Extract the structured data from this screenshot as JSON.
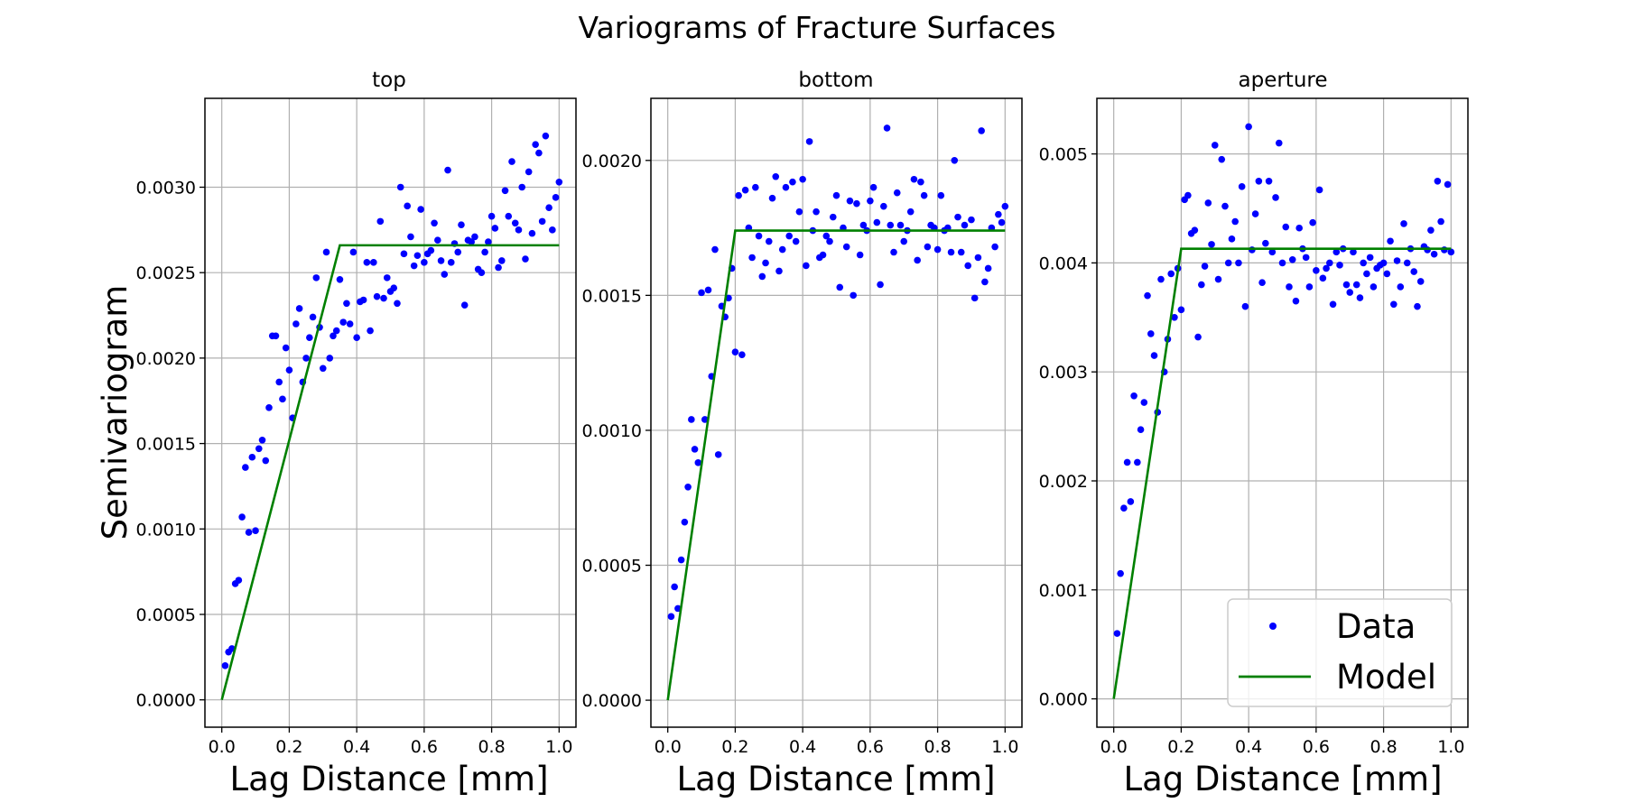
{
  "figure_title": "Variograms of Fracture Surfaces",
  "colors": {
    "data": "#0000ff",
    "model": "#008000",
    "grid": "#b0b0b0",
    "legend_border": "#cccccc"
  },
  "legend": {
    "placement": "lower-right",
    "panel": 2,
    "entries": [
      "Data",
      "Model"
    ]
  },
  "chart_data": [
    {
      "type": "scatter",
      "title": "top",
      "xlabel": "Lag Distance [mm]",
      "ylabel": "Semivariogram",
      "xlim": [
        -0.05,
        1.05
      ],
      "ylim": [
        -0.00016,
        0.00352
      ],
      "xticks": [
        0.0,
        0.2,
        0.4,
        0.6,
        0.8,
        1.0
      ],
      "xtick_labels": [
        "0.0",
        "0.2",
        "0.4",
        "0.6",
        "0.8",
        "1.0"
      ],
      "yticks": [
        0.0,
        0.0005,
        0.001,
        0.0015,
        0.002,
        0.0025,
        0.003
      ],
      "ytick_labels": [
        "0.0000",
        "0.0005",
        "0.0010",
        "0.0015",
        "0.0020",
        "0.0025",
        "0.0030"
      ],
      "grid": true,
      "series": [
        {
          "name": "Data",
          "style": "markers",
          "x": [
            0.01,
            0.02,
            0.03,
            0.04,
            0.05,
            0.06,
            0.07,
            0.08,
            0.09,
            0.1,
            0.11,
            0.12,
            0.13,
            0.14,
            0.15,
            0.16,
            0.17,
            0.18,
            0.19,
            0.2,
            0.21,
            0.22,
            0.23,
            0.24,
            0.25,
            0.26,
            0.27,
            0.28,
            0.29,
            0.3,
            0.31,
            0.32,
            0.33,
            0.34,
            0.35,
            0.36,
            0.37,
            0.38,
            0.39,
            0.4,
            0.41,
            0.42,
            0.43,
            0.44,
            0.45,
            0.46,
            0.47,
            0.48,
            0.49,
            0.5,
            0.51,
            0.52,
            0.53,
            0.54,
            0.55,
            0.56,
            0.57,
            0.58,
            0.59,
            0.6,
            0.61,
            0.62,
            0.63,
            0.64,
            0.65,
            0.66,
            0.67,
            0.68,
            0.69,
            0.7,
            0.71,
            0.72,
            0.73,
            0.74,
            0.75,
            0.76,
            0.77,
            0.78,
            0.79,
            0.8,
            0.81,
            0.82,
            0.83,
            0.84,
            0.85,
            0.86,
            0.87,
            0.88,
            0.89,
            0.9,
            0.91,
            0.92,
            0.93,
            0.94,
            0.95,
            0.96,
            0.97,
            0.98,
            0.99,
            1.0
          ],
          "y": [
            0.0002,
            0.00028,
            0.0003,
            0.00068,
            0.0007,
            0.00107,
            0.00136,
            0.00098,
            0.00142,
            0.00099,
            0.00147,
            0.00152,
            0.0014,
            0.00171,
            0.00213,
            0.00213,
            0.00186,
            0.00176,
            0.00206,
            0.00193,
            0.00165,
            0.0022,
            0.00229,
            0.00186,
            0.002,
            0.00212,
            0.00224,
            0.00247,
            0.00218,
            0.00194,
            0.00262,
            0.002,
            0.00213,
            0.00216,
            0.00246,
            0.00221,
            0.00232,
            0.0022,
            0.00262,
            0.00212,
            0.00233,
            0.00234,
            0.00256,
            0.00216,
            0.00256,
            0.00236,
            0.0028,
            0.00235,
            0.00247,
            0.00239,
            0.00241,
            0.00232,
            0.003,
            0.00261,
            0.00289,
            0.00271,
            0.00254,
            0.0026,
            0.00287,
            0.00256,
            0.00261,
            0.00263,
            0.00279,
            0.00269,
            0.00257,
            0.00249,
            0.0031,
            0.00256,
            0.00267,
            0.00262,
            0.00278,
            0.00231,
            0.00269,
            0.00268,
            0.00271,
            0.00252,
            0.0025,
            0.00262,
            0.00268,
            0.00283,
            0.00276,
            0.00253,
            0.00257,
            0.00298,
            0.00283,
            0.00315,
            0.00279,
            0.00275,
            0.003,
            0.00258,
            0.00309,
            0.00273,
            0.00325,
            0.0032,
            0.0028,
            0.0033,
            0.00288,
            0.00275,
            0.00294,
            0.00303
          ]
        },
        {
          "name": "Model",
          "style": "line",
          "x": [
            0.0,
            0.35,
            1.0
          ],
          "y": [
            0.0,
            0.00266,
            0.00266
          ]
        }
      ]
    },
    {
      "type": "scatter",
      "title": "bottom",
      "xlabel": "Lag Distance [mm]",
      "ylabel": "",
      "xlim": [
        -0.05,
        1.05
      ],
      "ylim": [
        -0.0001,
        0.00223
      ],
      "xticks": [
        0.0,
        0.2,
        0.4,
        0.6,
        0.8,
        1.0
      ],
      "xtick_labels": [
        "0.0",
        "0.2",
        "0.4",
        "0.6",
        "0.8",
        "1.0"
      ],
      "yticks": [
        0.0,
        0.0005,
        0.001,
        0.0015,
        0.002
      ],
      "ytick_labels": [
        "0.0000",
        "0.0005",
        "0.0010",
        "0.0015",
        "0.0020"
      ],
      "grid": true,
      "series": [
        {
          "name": "Data",
          "style": "markers",
          "x": [
            0.01,
            0.02,
            0.03,
            0.04,
            0.05,
            0.06,
            0.07,
            0.08,
            0.09,
            0.1,
            0.11,
            0.12,
            0.13,
            0.14,
            0.15,
            0.16,
            0.17,
            0.18,
            0.19,
            0.2,
            0.21,
            0.22,
            0.23,
            0.24,
            0.25,
            0.26,
            0.27,
            0.28,
            0.29,
            0.3,
            0.31,
            0.32,
            0.33,
            0.34,
            0.35,
            0.36,
            0.37,
            0.38,
            0.39,
            0.4,
            0.41,
            0.42,
            0.43,
            0.44,
            0.45,
            0.46,
            0.47,
            0.48,
            0.49,
            0.5,
            0.51,
            0.52,
            0.53,
            0.54,
            0.55,
            0.56,
            0.57,
            0.58,
            0.59,
            0.6,
            0.61,
            0.62,
            0.63,
            0.64,
            0.65,
            0.66,
            0.67,
            0.68,
            0.69,
            0.7,
            0.71,
            0.72,
            0.73,
            0.74,
            0.75,
            0.76,
            0.77,
            0.78,
            0.79,
            0.8,
            0.81,
            0.82,
            0.83,
            0.84,
            0.85,
            0.86,
            0.87,
            0.88,
            0.89,
            0.9,
            0.91,
            0.92,
            0.93,
            0.94,
            0.95,
            0.96,
            0.97,
            0.98,
            0.99,
            1.0
          ],
          "y": [
            0.00031,
            0.00042,
            0.00034,
            0.00052,
            0.00066,
            0.00079,
            0.00104,
            0.00093,
            0.00088,
            0.00151,
            0.00104,
            0.00152,
            0.0012,
            0.00167,
            0.00091,
            0.00146,
            0.00142,
            0.00149,
            0.0016,
            0.00129,
            0.00187,
            0.00128,
            0.00189,
            0.00175,
            0.00164,
            0.0019,
            0.00172,
            0.00157,
            0.00162,
            0.0017,
            0.00186,
            0.00194,
            0.00159,
            0.00167,
            0.0019,
            0.00172,
            0.00192,
            0.0017,
            0.00181,
            0.00193,
            0.00161,
            0.00207,
            0.00174,
            0.00181,
            0.00164,
            0.00165,
            0.00172,
            0.0017,
            0.00179,
            0.00187,
            0.00153,
            0.00175,
            0.00168,
            0.00185,
            0.0015,
            0.00184,
            0.00165,
            0.00176,
            0.00174,
            0.00185,
            0.0019,
            0.00177,
            0.00154,
            0.00183,
            0.00212,
            0.00176,
            0.00166,
            0.00188,
            0.00176,
            0.0017,
            0.00174,
            0.00181,
            0.00193,
            0.00163,
            0.00192,
            0.00187,
            0.00168,
            0.00176,
            0.00175,
            0.00167,
            0.00187,
            0.00174,
            0.00175,
            0.00166,
            0.002,
            0.00179,
            0.00166,
            0.00176,
            0.00161,
            0.00178,
            0.00149,
            0.00164,
            0.00211,
            0.00155,
            0.0016,
            0.00175,
            0.00168,
            0.0018,
            0.00177,
            0.00183
          ]
        },
        {
          "name": "Model",
          "style": "line",
          "x": [
            0.0,
            0.2,
            1.0
          ],
          "y": [
            0.0,
            0.00174,
            0.00174
          ]
        }
      ]
    },
    {
      "type": "scatter",
      "title": "aperture",
      "xlabel": "Lag Distance [mm]",
      "ylabel": "",
      "xlim": [
        -0.05,
        1.05
      ],
      "ylim": [
        -0.00026,
        0.00551
      ],
      "xticks": [
        0.0,
        0.2,
        0.4,
        0.6,
        0.8,
        1.0
      ],
      "xtick_labels": [
        "0.0",
        "0.2",
        "0.4",
        "0.6",
        "0.8",
        "1.0"
      ],
      "yticks": [
        0.0,
        0.001,
        0.002,
        0.003,
        0.004,
        0.005
      ],
      "ytick_labels": [
        "0.000",
        "0.001",
        "0.002",
        "0.003",
        "0.004",
        "0.005"
      ],
      "grid": true,
      "series": [
        {
          "name": "Data",
          "style": "markers",
          "x": [
            0.01,
            0.02,
            0.03,
            0.04,
            0.05,
            0.06,
            0.07,
            0.08,
            0.09,
            0.1,
            0.11,
            0.12,
            0.13,
            0.14,
            0.15,
            0.16,
            0.17,
            0.18,
            0.19,
            0.2,
            0.21,
            0.22,
            0.23,
            0.24,
            0.25,
            0.26,
            0.27,
            0.28,
            0.29,
            0.3,
            0.31,
            0.32,
            0.33,
            0.34,
            0.35,
            0.36,
            0.37,
            0.38,
            0.39,
            0.4,
            0.41,
            0.42,
            0.43,
            0.44,
            0.45,
            0.46,
            0.47,
            0.48,
            0.49,
            0.5,
            0.51,
            0.52,
            0.53,
            0.54,
            0.55,
            0.56,
            0.57,
            0.58,
            0.59,
            0.6,
            0.61,
            0.62,
            0.63,
            0.64,
            0.65,
            0.66,
            0.67,
            0.68,
            0.69,
            0.7,
            0.71,
            0.72,
            0.73,
            0.74,
            0.75,
            0.76,
            0.77,
            0.78,
            0.79,
            0.8,
            0.81,
            0.82,
            0.83,
            0.84,
            0.85,
            0.86,
            0.87,
            0.88,
            0.89,
            0.9,
            0.91,
            0.92,
            0.93,
            0.94,
            0.95,
            0.96,
            0.97,
            0.98,
            0.99,
            1.0
          ],
          "y": [
            0.0006,
            0.00115,
            0.00175,
            0.00217,
            0.00181,
            0.00278,
            0.00217,
            0.00247,
            0.00272,
            0.0037,
            0.00335,
            0.00315,
            0.00263,
            0.00385,
            0.003,
            0.0033,
            0.0039,
            0.0035,
            0.00395,
            0.00357,
            0.00458,
            0.00462,
            0.00427,
            0.0043,
            0.00332,
            0.0038,
            0.00397,
            0.00455,
            0.00417,
            0.00508,
            0.00385,
            0.00495,
            0.00452,
            0.004,
            0.00422,
            0.00438,
            0.004,
            0.0047,
            0.0036,
            0.00525,
            0.00412,
            0.00445,
            0.00475,
            0.00382,
            0.00418,
            0.00475,
            0.0041,
            0.0046,
            0.0051,
            0.004,
            0.00433,
            0.00378,
            0.00403,
            0.00365,
            0.00432,
            0.00413,
            0.00405,
            0.00378,
            0.00437,
            0.00393,
            0.00467,
            0.00386,
            0.00395,
            0.004,
            0.00362,
            0.0041,
            0.00398,
            0.00413,
            0.0038,
            0.00373,
            0.0041,
            0.0038,
            0.00368,
            0.004,
            0.0039,
            0.00405,
            0.00378,
            0.00395,
            0.00398,
            0.004,
            0.0039,
            0.0042,
            0.00362,
            0.00402,
            0.00378,
            0.00436,
            0.004,
            0.00413,
            0.00392,
            0.0036,
            0.00383,
            0.00415,
            0.00412,
            0.0043,
            0.00408,
            0.00475,
            0.00438,
            0.00412,
            0.00472,
            0.0041
          ]
        },
        {
          "name": "Model",
          "style": "line",
          "x": [
            0.0,
            0.2,
            1.0
          ],
          "y": [
            0.0,
            0.00413,
            0.00413
          ]
        }
      ]
    }
  ]
}
